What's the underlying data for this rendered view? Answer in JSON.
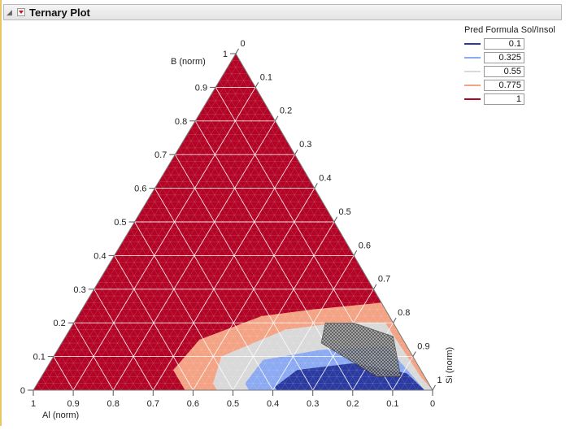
{
  "panel": {
    "title": "Ternary Plot"
  },
  "chart_data": {
    "type": "ternary-contour",
    "axes": {
      "bottom_label": "Al (norm)",
      "left_label": "B (norm)",
      "right_label": "Si (norm)",
      "bottom_ticks": [
        "1",
        "0.9",
        "0.8",
        "0.7",
        "0.6",
        "0.5",
        "0.4",
        "0.3",
        "0.2",
        "0.1",
        "0"
      ],
      "left_ticks": [
        "0",
        "0.1",
        "0.2",
        "0.3",
        "0.4",
        "0.5",
        "0.6",
        "0.7",
        "0.8",
        "0.9",
        "1"
      ],
      "right_ticks": [
        "0",
        "0.1",
        "0.2",
        "0.3",
        "0.4",
        "0.5",
        "0.6",
        "0.7",
        "0.8",
        "0.9",
        "1"
      ],
      "grid_step": 0.1,
      "fine_grid_step": 0.02
    },
    "legend": {
      "title": "Pred Formula Sol/Insol",
      "items": [
        {
          "value": "0.1",
          "color": "#2a3aa0"
        },
        {
          "value": "0.325",
          "color": "#8caaf2"
        },
        {
          "value": "0.55",
          "color": "#d9d9d9"
        },
        {
          "value": "0.775",
          "color": "#f4a284"
        },
        {
          "value": "1",
          "color": "#b40426"
        }
      ]
    },
    "fill_colors": {
      "above_1": "#b40426",
      "band_0775_1": "#f4a284",
      "band_055_0775": "#d9d9d9",
      "band_0325_055": "#8caaf2",
      "band_01_0325": "#2a3aa0"
    },
    "contours": [
      {
        "level": "0.775",
        "points": [
          [
            0.0,
            0.08,
            0.92
          ],
          [
            0.0,
            0.26,
            0.74
          ],
          [
            0.18,
            0.24,
            0.58
          ],
          [
            0.32,
            0.22,
            0.46
          ],
          [
            0.51,
            0.15,
            0.34
          ],
          [
            0.62,
            0.06,
            0.32
          ],
          [
            0.62,
            0.0,
            0.38
          ]
        ]
      },
      {
        "level": "0.55",
        "points": [
          [
            0.01,
            0.04,
            0.95
          ],
          [
            0.02,
            0.2,
            0.78
          ],
          [
            0.14,
            0.2,
            0.66
          ],
          [
            0.28,
            0.18,
            0.54
          ],
          [
            0.48,
            0.1,
            0.42
          ],
          [
            0.54,
            0.02,
            0.44
          ],
          [
            0.54,
            0.0,
            0.46
          ]
        ]
      },
      {
        "level": "0.325",
        "points": [
          [
            0.02,
            0.0,
            0.98
          ],
          [
            0.05,
            0.13,
            0.82
          ],
          [
            0.22,
            0.12,
            0.66
          ],
          [
            0.38,
            0.09,
            0.53
          ],
          [
            0.46,
            0.02,
            0.52
          ],
          [
            0.46,
            0.0,
            0.54
          ]
        ]
      },
      {
        "level": "0.1",
        "points": [
          [
            0.02,
            0.0,
            0.98
          ],
          [
            0.04,
            0.05,
            0.91
          ],
          [
            0.16,
            0.08,
            0.76
          ],
          [
            0.31,
            0.06,
            0.63
          ],
          [
            0.39,
            0.01,
            0.6
          ],
          [
            0.39,
            0.0,
            0.61
          ]
        ]
      }
    ],
    "hatched_region": {
      "points": [
        [
          0.1,
          0.2,
          0.7
        ],
        [
          0.02,
          0.16,
          0.82
        ],
        [
          0.06,
          0.04,
          0.9
        ],
        [
          0.12,
          0.04,
          0.84
        ],
        [
          0.21,
          0.14,
          0.65
        ],
        [
          0.17,
          0.2,
          0.63
        ]
      ]
    }
  }
}
